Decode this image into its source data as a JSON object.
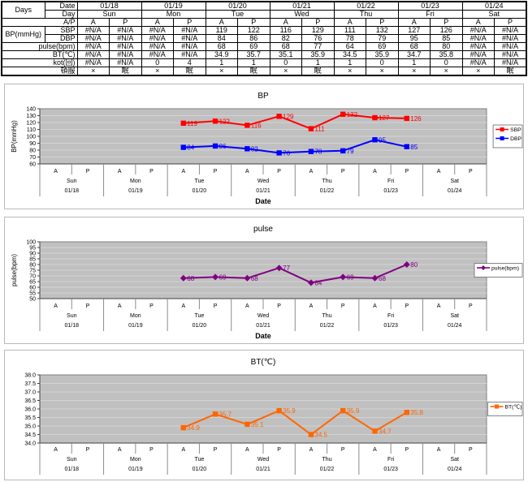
{
  "calendar": {
    "ap": [
      "A",
      "P"
    ],
    "days": [
      {
        "day": "Sun",
        "date": "01/18"
      },
      {
        "day": "Mon",
        "date": "01/19"
      },
      {
        "day": "Tue",
        "date": "01/20"
      },
      {
        "day": "Wed",
        "date": "01/21"
      },
      {
        "day": "Thu",
        "date": "01/22"
      },
      {
        "day": "Fri",
        "date": "01/23"
      },
      {
        "day": "Sat",
        "date": "01/24"
      }
    ]
  },
  "table": {
    "rows": [
      [
        {
          "t": "Days",
          "rs": 2,
          "a": "c"
        },
        {
          "t": "Date",
          "a": "r"
        },
        {
          "t": "01/18",
          "cs": 2
        },
        {
          "t": "01/19",
          "cs": 2
        },
        {
          "t": "01/20",
          "cs": 2
        },
        {
          "t": "01/21",
          "cs": 2
        },
        {
          "t": "01/22",
          "cs": 2
        },
        {
          "t": "01/23",
          "cs": 2
        },
        {
          "t": "01/24",
          "cs": 2
        }
      ],
      [
        {
          "t": "Day",
          "a": "r"
        },
        {
          "t": "Sun",
          "cs": 2
        },
        {
          "t": "Mon",
          "cs": 2
        },
        {
          "t": "Tue",
          "cs": 2
        },
        {
          "t": "Wed",
          "cs": 2
        },
        {
          "t": "Thu",
          "cs": 2
        },
        {
          "t": "Fri",
          "cs": 2
        },
        {
          "t": "Sat",
          "cs": 2
        }
      ],
      [
        {
          "t": "A/P",
          "cs": 2,
          "a": "r"
        },
        {
          "t": "A"
        },
        {
          "t": "P"
        },
        {
          "t": "A"
        },
        {
          "t": "P"
        },
        {
          "t": "A"
        },
        {
          "t": "P"
        },
        {
          "t": "A"
        },
        {
          "t": "P"
        },
        {
          "t": "A"
        },
        {
          "t": "P"
        },
        {
          "t": "A"
        },
        {
          "t": "P"
        },
        {
          "t": "A"
        },
        {
          "t": "P"
        }
      ],
      [
        {
          "t": "BP(mmHg)",
          "rs": 2,
          "a": "c"
        },
        {
          "t": "SBP",
          "a": "r"
        },
        {
          "t": "#N/A"
        },
        {
          "t": "#N/A"
        },
        {
          "t": "#N/A"
        },
        {
          "t": "#N/A"
        },
        {
          "t": "119"
        },
        {
          "t": "122"
        },
        {
          "t": "116"
        },
        {
          "t": "129"
        },
        {
          "t": "111"
        },
        {
          "t": "132"
        },
        {
          "t": "127"
        },
        {
          "t": "126"
        },
        {
          "t": "#N/A"
        },
        {
          "t": "#N/A"
        }
      ],
      [
        {
          "t": "DBP",
          "a": "r"
        },
        {
          "t": "#N/A"
        },
        {
          "t": "#N/A"
        },
        {
          "t": "#N/A"
        },
        {
          "t": "#N/A"
        },
        {
          "t": "84"
        },
        {
          "t": "86"
        },
        {
          "t": "82"
        },
        {
          "t": "76"
        },
        {
          "t": "78"
        },
        {
          "t": "79"
        },
        {
          "t": "95"
        },
        {
          "t": "85"
        },
        {
          "t": "#N/A"
        },
        {
          "t": "#N/A"
        }
      ],
      [
        {
          "t": "pulse(bpm)",
          "cs": 2,
          "a": "r"
        },
        {
          "t": "#N/A"
        },
        {
          "t": "#N/A"
        },
        {
          "t": "#N/A"
        },
        {
          "t": "#N/A"
        },
        {
          "t": "68"
        },
        {
          "t": "69"
        },
        {
          "t": "68"
        },
        {
          "t": "77"
        },
        {
          "t": "64"
        },
        {
          "t": "69"
        },
        {
          "t": "68"
        },
        {
          "t": "80"
        },
        {
          "t": "#N/A"
        },
        {
          "t": "#N/A"
        }
      ],
      [
        {
          "t": "BT(℃)",
          "cs": 2,
          "a": "r"
        },
        {
          "t": "#N/A"
        },
        {
          "t": "#N/A"
        },
        {
          "t": "#N/A"
        },
        {
          "t": "#N/A"
        },
        {
          "t": "34.9"
        },
        {
          "t": "35.7"
        },
        {
          "t": "35.1"
        },
        {
          "t": "35.9"
        },
        {
          "t": "34.5"
        },
        {
          "t": "35.9"
        },
        {
          "t": "34.7"
        },
        {
          "t": "35.8"
        },
        {
          "t": "#N/A"
        },
        {
          "t": "#N/A"
        }
      ],
      [
        {
          "t": "kot(回)",
          "cs": 2,
          "a": "r"
        },
        {
          "t": "#N/A"
        },
        {
          "t": "#N/A"
        },
        {
          "t": "0"
        },
        {
          "t": "4"
        },
        {
          "t": "1"
        },
        {
          "t": "1"
        },
        {
          "t": "0"
        },
        {
          "t": "1"
        },
        {
          "t": "1"
        },
        {
          "t": "0"
        },
        {
          "t": "1"
        },
        {
          "t": "0"
        },
        {
          "t": "#N/A"
        },
        {
          "t": "#N/A"
        }
      ],
      [
        {
          "t": "頓服",
          "cs": 2,
          "a": "r"
        },
        {
          "t": "×"
        },
        {
          "t": "眠"
        },
        {
          "t": "×"
        },
        {
          "t": "眠"
        },
        {
          "t": "×"
        },
        {
          "t": "眠"
        },
        {
          "t": "×"
        },
        {
          "t": "眠"
        },
        {
          "t": "×"
        },
        {
          "t": "×"
        },
        {
          "t": "×"
        },
        {
          "t": "×"
        },
        {
          "t": "×"
        },
        {
          "t": "眠"
        }
      ]
    ]
  },
  "chart_data": [
    {
      "type": "line",
      "title": "BP",
      "ylabel": "BP(mmHg)",
      "xlabel": "Date",
      "ylim": [
        60,
        140
      ],
      "ystep": 10,
      "ydecimals": 0,
      "grid": true,
      "plot_bg": "#C0C0C0",
      "legend_position": "right",
      "series": [
        {
          "name": "SBP",
          "color": "#FF0000",
          "marker": "square",
          "values": [
            null,
            null,
            null,
            null,
            119,
            122,
            116,
            129,
            111,
            132,
            127,
            126,
            null,
            null
          ]
        },
        {
          "name": "DBP",
          "color": "#0000FF",
          "marker": "square",
          "values": [
            null,
            null,
            null,
            null,
            84,
            86,
            82,
            76,
            78,
            79,
            95,
            85,
            null,
            null
          ]
        }
      ]
    },
    {
      "type": "line",
      "title": "pulse",
      "ylabel": "pulse(bpm)",
      "xlabel": "Date",
      "ylim": [
        50,
        100
      ],
      "ystep": 5,
      "ydecimals": 0,
      "grid": true,
      "plot_bg": "#C0C0C0",
      "legend_position": "right",
      "series": [
        {
          "name": "pulse(bpm)",
          "color": "#800080",
          "marker": "diamond",
          "values": [
            null,
            null,
            null,
            null,
            68,
            69,
            68,
            77,
            64,
            69,
            68,
            80,
            null,
            null
          ]
        }
      ]
    },
    {
      "type": "line",
      "title": "BT(℃)",
      "ylabel": "",
      "xlabel": "",
      "ylim": [
        34.0,
        38.0
      ],
      "ystep": 0.5,
      "ydecimals": 1,
      "grid": true,
      "plot_bg": "#C0C0C0",
      "legend_position": "right",
      "series": [
        {
          "name": "BT(℃)",
          "color": "#FF6600",
          "marker": "square",
          "values": [
            null,
            null,
            null,
            null,
            34.9,
            35.7,
            35.1,
            35.9,
            34.5,
            35.9,
            34.7,
            35.8,
            null,
            null
          ]
        }
      ]
    }
  ]
}
